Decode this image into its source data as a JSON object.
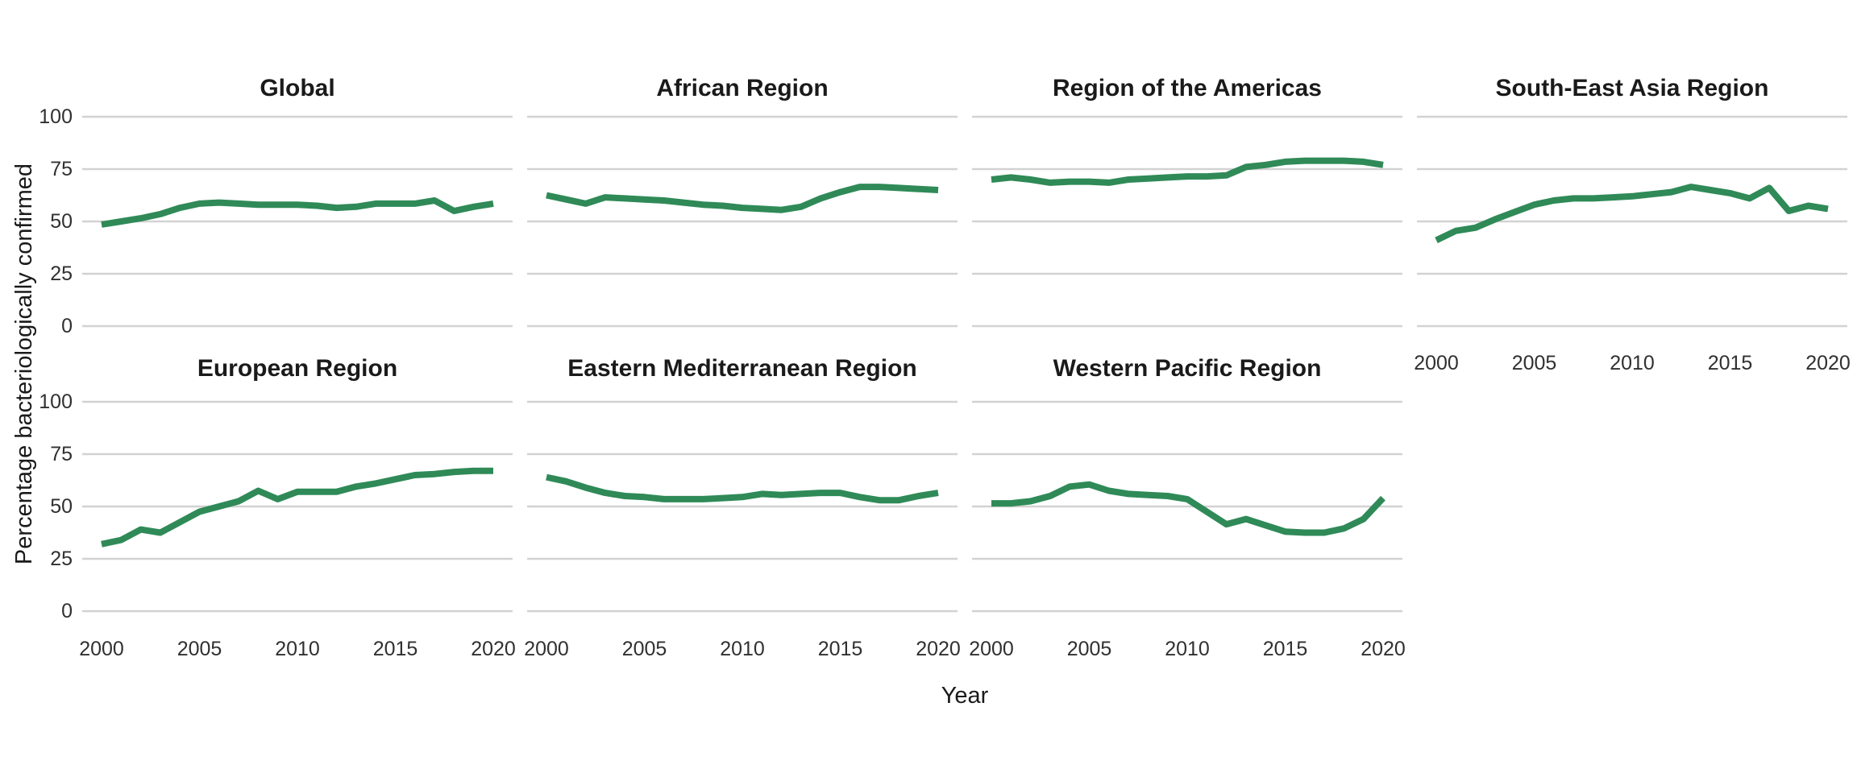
{
  "chart_data": {
    "type": "line",
    "title": "",
    "x_label": "Year",
    "y_label": "Percentage bacteriologically confirmed",
    "x": [
      2000,
      2001,
      2002,
      2003,
      2004,
      2005,
      2006,
      2007,
      2008,
      2009,
      2010,
      2011,
      2012,
      2013,
      2014,
      2015,
      2016,
      2017,
      2018,
      2019,
      2020
    ],
    "x_ticks": [
      2000,
      2005,
      2010,
      2015,
      2020
    ],
    "y_ticks": [
      100,
      75,
      50,
      25,
      0
    ],
    "ylim": [
      0,
      100
    ],
    "xlim": [
      2000,
      2020
    ],
    "grid": "horizontal-major-only",
    "legend": "none",
    "line_color": "#2F8A57",
    "grid_color": "#D2D2D2",
    "facets": [
      {
        "title": "Global",
        "row": 0,
        "col": 0,
        "values": [
          48.5,
          50,
          51.5,
          53.5,
          56.5,
          58.5,
          59,
          58.5,
          58,
          58,
          58,
          57.5,
          56.5,
          57,
          58.5,
          58.5,
          58.5,
          60,
          55,
          57,
          58.5
        ]
      },
      {
        "title": "African Region",
        "row": 0,
        "col": 1,
        "values": [
          62.5,
          60.5,
          58.5,
          61.5,
          61,
          60.5,
          60,
          59,
          58,
          57.5,
          56.5,
          56,
          55.5,
          57,
          61,
          64,
          66.5,
          66.5,
          66,
          65.5,
          65
        ]
      },
      {
        "title": "Region of the Americas",
        "row": 0,
        "col": 2,
        "values": [
          70,
          71,
          70,
          68.5,
          69,
          69,
          68.5,
          70,
          70.5,
          71,
          71.5,
          71.5,
          72,
          76,
          77,
          78.5,
          79,
          79,
          79,
          78.5,
          77
        ]
      },
      {
        "title": "South-East Asia Region",
        "row": 0,
        "col": 3,
        "values": [
          41,
          45.5,
          47,
          51,
          54.5,
          58,
          60,
          61,
          61,
          61.5,
          62,
          63,
          64,
          66.5,
          65,
          63.5,
          61,
          66,
          55,
          57.5,
          56
        ]
      },
      {
        "title": "European Region",
        "row": 1,
        "col": 0,
        "values": [
          32,
          34,
          39,
          37.5,
          42.5,
          47.5,
          50,
          52.5,
          57.5,
          53.5,
          57,
          57,
          57,
          59.5,
          61,
          63,
          65,
          65.5,
          66.5,
          67,
          67
        ]
      },
      {
        "title": "Eastern Mediterranean Region",
        "row": 1,
        "col": 1,
        "values": [
          64,
          62,
          59,
          56.5,
          55,
          54.5,
          53.5,
          53.5,
          53.5,
          54,
          54.5,
          56,
          55.5,
          56,
          56.5,
          56.5,
          54.5,
          53,
          53,
          55,
          56.5
        ]
      },
      {
        "title": "Western Pacific Region",
        "row": 1,
        "col": 2,
        "values": [
          51.5,
          51.5,
          52.5,
          55,
          59.5,
          60.5,
          57.5,
          56,
          55.5,
          55,
          53.5,
          47.5,
          41.5,
          44,
          41,
          38,
          37.5,
          37.5,
          39.5,
          44,
          54
        ]
      }
    ]
  }
}
